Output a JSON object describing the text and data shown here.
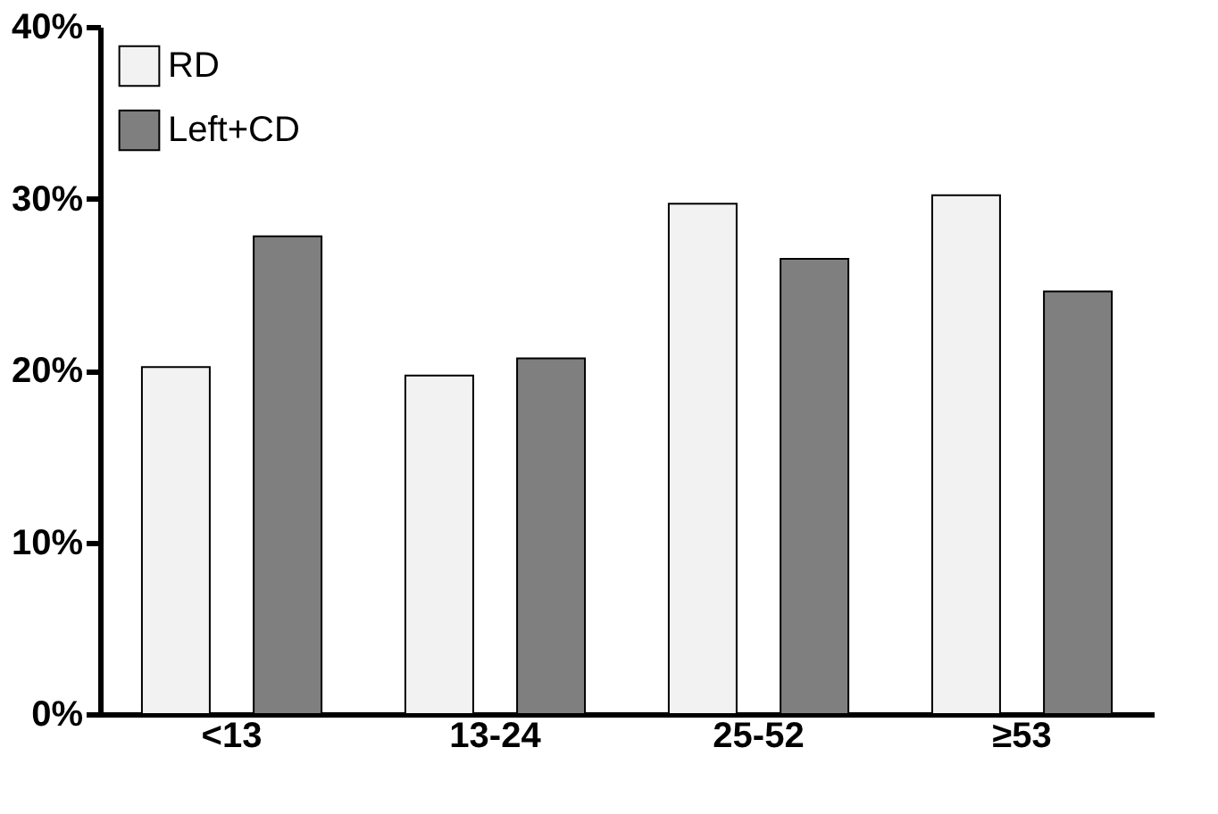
{
  "chart_data": {
    "type": "bar",
    "categories": [
      "<13",
      "13-24",
      "25-52",
      "≥53"
    ],
    "series": [
      {
        "name": "RD",
        "color": "#f2f2f2",
        "values": [
          20.2,
          19.7,
          29.7,
          30.2
        ]
      },
      {
        "name": "Left+CD",
        "color": "#7f7f7f",
        "values": [
          27.8,
          20.7,
          26.5,
          24.6
        ]
      }
    ],
    "ylim": [
      0,
      40
    ],
    "yticks": [
      {
        "value": 0,
        "label": "0%"
      },
      {
        "value": 10,
        "label": "10%"
      },
      {
        "value": 20,
        "label": "20%"
      },
      {
        "value": 30,
        "label": "30%"
      },
      {
        "value": 40,
        "label": "40%"
      }
    ],
    "grid": false,
    "legend": "top left"
  }
}
